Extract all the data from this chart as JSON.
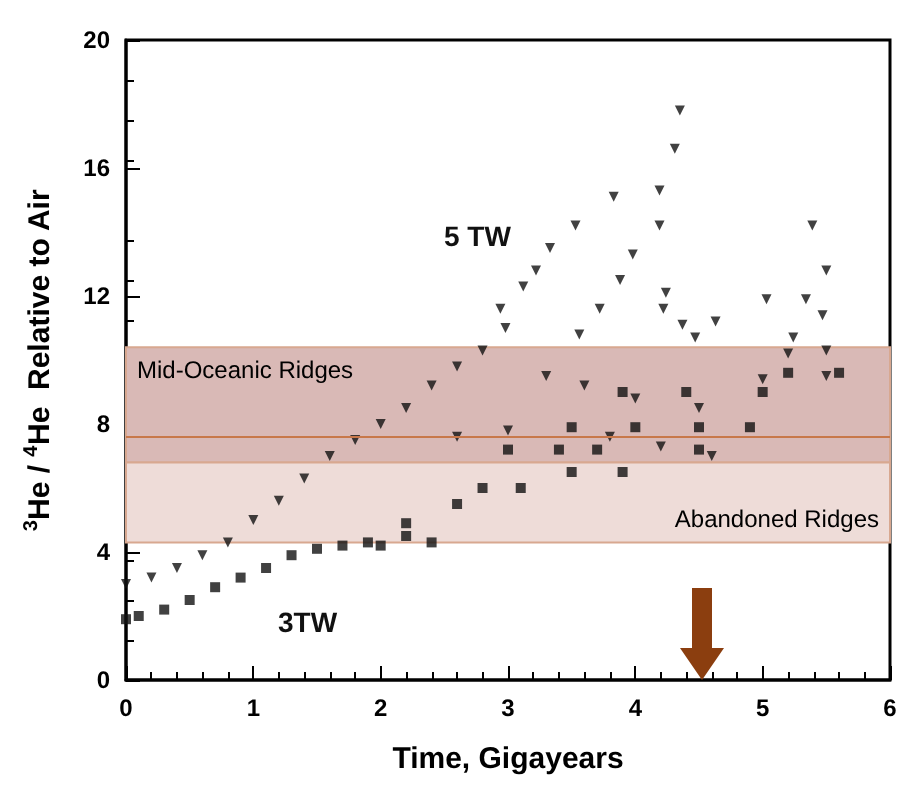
{
  "chart_data": {
    "type": "scatter",
    "xlabel": "Time, Gigayears",
    "ylabel": "$^{3}$He / $^{4}$He  Relative to Air",
    "xlim": [
      0,
      6
    ],
    "xticks": [
      0,
      1,
      2,
      3,
      4,
      5,
      6
    ],
    "ylim": [
      0,
      20
    ],
    "yticks": [
      0,
      4,
      8,
      12,
      16,
      20
    ],
    "grid": false,
    "series": [
      {
        "name": "5 TW",
        "color": "#111111",
        "marker": "triangle",
        "x": [
          0,
          0.2,
          0.4,
          0.6,
          0.8,
          1.0,
          1.2,
          1.4,
          1.6,
          1.8,
          2.0,
          2.2,
          2.4,
          2.6,
          2.6,
          2.8,
          2.94,
          2.98,
          3.0,
          3.12,
          3.22,
          3.3,
          3.33,
          3.53,
          3.56,
          3.6,
          3.72,
          3.8,
          3.83,
          3.88,
          3.98,
          4.0,
          4.19,
          4.19,
          4.2,
          4.22,
          4.24,
          4.31,
          4.35,
          4.37,
          4.47,
          4.5,
          4.6,
          4.63,
          5.0,
          5.03,
          5.2,
          5.24,
          5.34,
          5.39,
          5.47,
          5.5,
          5.5,
          5.5
        ],
        "values": [
          3.0,
          3.2,
          3.5,
          3.9,
          4.3,
          5.0,
          5.6,
          6.3,
          7.0,
          7.5,
          8.0,
          8.5,
          9.2,
          9.8,
          7.6,
          10.3,
          11.6,
          11.0,
          7.8,
          12.3,
          12.8,
          9.5,
          13.5,
          14.2,
          10.8,
          9.2,
          11.6,
          7.6,
          15.1,
          12.5,
          13.3,
          8.8,
          15.3,
          14.2,
          7.3,
          11.6,
          12.1,
          16.6,
          17.8,
          11.1,
          10.7,
          8.5,
          7.0,
          11.2,
          9.4,
          11.9,
          10.2,
          10.7,
          11.9,
          14.2,
          11.4,
          12.8,
          9.5,
          10.3
        ]
      },
      {
        "name": "3TW",
        "color": "#111111",
        "marker": "square",
        "x": [
          0,
          0.1,
          0.3,
          0.5,
          0.7,
          0.9,
          1.1,
          1.3,
          1.5,
          1.7,
          1.9,
          2.0,
          2.2,
          2.2,
          2.4,
          2.6,
          2.8,
          3.0,
          3.1,
          3.4,
          3.5,
          3.5,
          3.7,
          3.9,
          3.9,
          4.0,
          4.4,
          4.5,
          4.5,
          4.9,
          5.0,
          5.2,
          5.6
        ],
        "values": [
          1.9,
          2.0,
          2.2,
          2.5,
          2.9,
          3.2,
          3.5,
          3.9,
          4.1,
          4.2,
          4.3,
          4.2,
          4.5,
          4.9,
          4.3,
          5.5,
          6.0,
          7.2,
          6.0,
          7.2,
          6.5,
          7.9,
          7.2,
          6.5,
          9.0,
          7.9,
          9.0,
          7.2,
          7.9,
          7.9,
          9.0,
          9.6,
          9.6
        ]
      }
    ],
    "bands": [
      {
        "axis": "y",
        "from": 6.8,
        "to": 10.4,
        "label": "Mid-Oceanic Ridges",
        "color": "#d9b9b6"
      },
      {
        "axis": "y",
        "from": 4.3,
        "to": 6.8,
        "label": "Abandoned Ridges",
        "color": "#eedcd8"
      }
    ],
    "ref_lines": [
      {
        "axis": "y",
        "value": 7.6,
        "color": "#c8784a",
        "line_style": "solid"
      }
    ]
  }
}
